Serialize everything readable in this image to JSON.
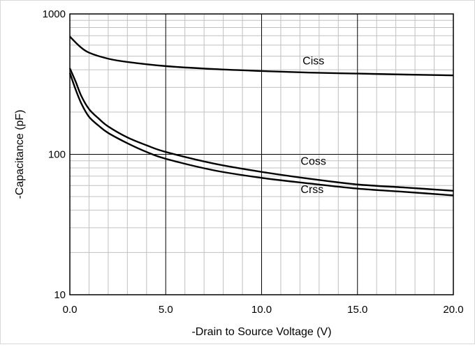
{
  "chart_data": {
    "type": "line",
    "title": "",
    "xlabel": "-Drain to Source Voltage (V)",
    "ylabel": "-Capacitance (pF)",
    "xlim": [
      0,
      20
    ],
    "ylim": [
      10,
      1000
    ],
    "yscale": "log",
    "grid": true,
    "x_ticks": [
      "0.0",
      "5.0",
      "10.0",
      "15.0",
      "20.0"
    ],
    "y_ticks": [
      "10",
      "100",
      "1000"
    ],
    "series": [
      {
        "name": "Ciss",
        "x": [
          0,
          0.5,
          1,
          2,
          3,
          5,
          7.5,
          10,
          12.5,
          15,
          17.5,
          20
        ],
        "y": [
          690,
          590,
          530,
          480,
          455,
          425,
          405,
          392,
          382,
          376,
          370,
          365
        ]
      },
      {
        "name": "Coss",
        "x": [
          0,
          0.3,
          0.6,
          1,
          1.5,
          2,
          3,
          4,
          5,
          7.5,
          10,
          12.5,
          15,
          17.5,
          20
        ],
        "y": [
          410,
          330,
          260,
          210,
          180,
          158,
          132,
          116,
          104,
          86,
          75,
          67,
          61,
          58,
          55
        ]
      },
      {
        "name": "Crss",
        "x": [
          0,
          0.3,
          0.6,
          1,
          1.5,
          2,
          3,
          4,
          5,
          7.5,
          10,
          12.5,
          15,
          17.5,
          20
        ],
        "y": [
          380,
          290,
          230,
          185,
          160,
          142,
          120,
          104,
          93,
          77,
          68,
          62,
          57,
          54,
          51
        ]
      }
    ]
  }
}
